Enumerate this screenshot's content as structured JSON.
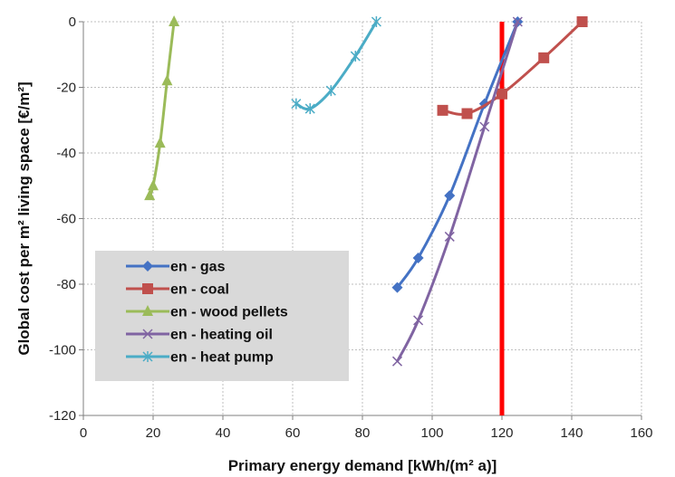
{
  "chart_data": {
    "type": "line",
    "xlabel": "Primary energy demand [kWh/(m² a)]",
    "ylabel": "Global cost per m² living space [€/m²]",
    "xlim": [
      0,
      160
    ],
    "ylim": [
      -120,
      0
    ],
    "x_ticks": [
      0,
      20,
      40,
      60,
      80,
      100,
      120,
      140,
      160
    ],
    "y_ticks": [
      0,
      -20,
      -40,
      -60,
      -80,
      -100,
      -120
    ],
    "grid": "dashed",
    "legend_position": "center-left",
    "reference_line": {
      "x": 120,
      "color": "#ff0000"
    },
    "series": [
      {
        "name": "en - gas",
        "color": "#4472c4",
        "marker": "diamond",
        "points": [
          [
            90,
            -81
          ],
          [
            96,
            -72
          ],
          [
            105,
            -53
          ],
          [
            115,
            -25
          ],
          [
            124.5,
            0
          ]
        ]
      },
      {
        "name": "en - coal",
        "color": "#c0504d",
        "marker": "square",
        "points": [
          [
            103,
            -27
          ],
          [
            110,
            -28
          ],
          [
            120,
            -22
          ],
          [
            132,
            -11
          ],
          [
            143,
            0
          ]
        ]
      },
      {
        "name": "en - wood pellets",
        "color": "#9bbb59",
        "marker": "triangle",
        "points": [
          [
            19,
            -53
          ],
          [
            20,
            -50
          ],
          [
            22,
            -37
          ],
          [
            24,
            -18
          ],
          [
            26,
            0
          ]
        ]
      },
      {
        "name": "en - heating oil",
        "color": "#8064a2",
        "marker": "x",
        "points": [
          [
            90,
            -103.5
          ],
          [
            96,
            -91
          ],
          [
            105,
            -65.5
          ],
          [
            115,
            -32
          ],
          [
            124.5,
            0
          ]
        ]
      },
      {
        "name": "en - heat pump",
        "color": "#4bacc6",
        "marker": "asterisk",
        "points": [
          [
            61,
            -25
          ],
          [
            65,
            -26.5
          ],
          [
            71,
            -21
          ],
          [
            78,
            -10.5
          ],
          [
            84,
            0
          ]
        ]
      }
    ]
  }
}
